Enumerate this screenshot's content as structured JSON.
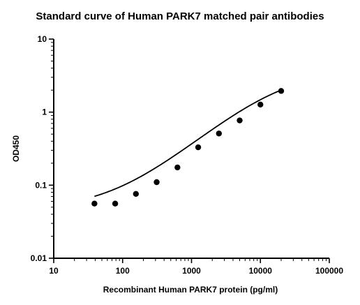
{
  "chart_data": {
    "type": "scatter",
    "title": "Standard curve of Human PARK7 matched pair antibodies",
    "xlabel": "Recombinant Human PARK7 protein (pg/ml)",
    "ylabel": "OD450",
    "x_scale": "log",
    "y_scale": "log",
    "xlim": [
      10,
      100000
    ],
    "ylim": [
      0.01,
      10
    ],
    "x_ticks": [
      {
        "value": 10,
        "label": "10"
      },
      {
        "value": 100,
        "label": "100"
      },
      {
        "value": 1000,
        "label": "1000"
      },
      {
        "value": 10000,
        "label": "10000"
      },
      {
        "value": 100000,
        "label": "100000"
      }
    ],
    "y_ticks": [
      {
        "value": 0.01,
        "label": "0.01"
      },
      {
        "value": 0.1,
        "label": "0.1"
      },
      {
        "value": 1,
        "label": "1"
      },
      {
        "value": 10,
        "label": "10"
      }
    ],
    "grid": false,
    "legend": "none",
    "series": [
      {
        "points": [
          {
            "x": 39,
            "y": 0.056
          },
          {
            "x": 78,
            "y": 0.056
          },
          {
            "x": 156,
            "y": 0.076
          },
          {
            "x": 312,
            "y": 0.11
          },
          {
            "x": 625,
            "y": 0.175
          },
          {
            "x": 1250,
            "y": 0.33
          },
          {
            "x": 2500,
            "y": 0.51
          },
          {
            "x": 5000,
            "y": 0.77
          },
          {
            "x": 10000,
            "y": 1.27
          },
          {
            "x": 20000,
            "y": 1.95
          }
        ]
      }
    ],
    "fit_curve": {
      "type": "4PL",
      "bottom": 0.046,
      "top": 3.8,
      "ec50": 18000,
      "hill": 0.82,
      "x_range": [
        39,
        20000
      ]
    },
    "colors": {
      "marker": "#000000",
      "curve": "#000000",
      "axis": "#000000",
      "background": "#ffffff"
    }
  }
}
